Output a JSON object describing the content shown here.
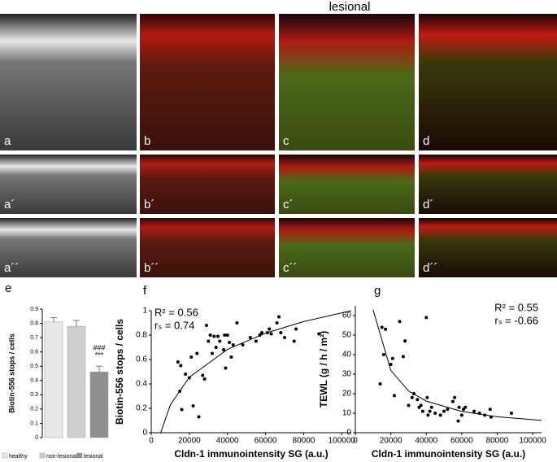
{
  "figure_title": "lesional",
  "micrographs": [
    "a",
    "b",
    "c",
    "d",
    "a´",
    "b´",
    "c´",
    "d´",
    "a´´",
    "b´´",
    "c´´",
    "d´´"
  ],
  "chart_data": [
    {
      "type": "bar",
      "panel": "e",
      "ylabel": "Biotin-556 stops / cells",
      "categories": [
        "healthy",
        "non-lesional",
        "lesional"
      ],
      "values": [
        0.81,
        0.78,
        0.46
      ],
      "errors": [
        0.03,
        0.04,
        0.04
      ],
      "colors": [
        "#e8e8e8",
        "#cfcfcf",
        "#8f8f8f"
      ],
      "annotations": [
        "###",
        "***"
      ],
      "ylim": [
        0,
        0.9
      ],
      "yticks": [
        0,
        0.1,
        0.2,
        0.3,
        0.4,
        0.5,
        0.6,
        0.7,
        0.8,
        0.9
      ],
      "legend": "bottom"
    },
    {
      "type": "scatter",
      "panel": "f",
      "xlabel": "Cldn-1 immunointensity SG (a.u.)",
      "ylabel": "Biotin-556 stops / cells",
      "annotations": [
        "R² = 0.56",
        "rₛ = 0.74"
      ],
      "annotation_corner": "top-left",
      "x": [
        14000,
        15000,
        16000,
        15500,
        18000,
        20000,
        21000,
        22000,
        25000,
        24000,
        27000,
        28000,
        29000,
        30000,
        31000,
        32000,
        33000,
        34000,
        35000,
        36000,
        38000,
        38500,
        39000,
        40000,
        41000,
        42000,
        43000,
        45000,
        48000,
        52000,
        55000,
        57000,
        58000,
        61000,
        62000,
        63000,
        66000,
        67000,
        68000,
        70000,
        75000,
        76000,
        88000
      ],
      "values": [
        0.58,
        0.34,
        0.19,
        0.55,
        0.48,
        0.45,
        0.62,
        0.22,
        0.13,
        0.65,
        0.47,
        0.44,
        0.88,
        0.75,
        0.8,
        0.65,
        0.79,
        0.7,
        0.79,
        0.75,
        0.68,
        0.8,
        0.53,
        0.8,
        0.74,
        0.62,
        0.72,
        0.9,
        0.72,
        0.78,
        0.75,
        0.8,
        0.82,
        0.82,
        0.85,
        0.81,
        0.9,
        0.95,
        0.82,
        0.78,
        0.75,
        0.85,
        0.81
      ],
      "fit": {
        "x": [
          5000,
          10000,
          20000,
          40000,
          60000,
          80000,
          105000
        ],
        "values": [
          0,
          0.228,
          0.455,
          0.683,
          0.816,
          0.911,
          1.0
        ]
      },
      "color": "#000000",
      "xlim": [
        0,
        105000
      ],
      "xticks": [
        0,
        20000,
        40000,
        60000,
        80000,
        100000
      ],
      "ylim": [
        0,
        1
      ],
      "yticks": [
        0,
        0.2,
        0.4,
        0.6,
        0.8,
        1
      ]
    },
    {
      "type": "scatter",
      "panel": "g",
      "xlabel": "Cldn-1 immunointensity SG (a.u.)",
      "ylabel": "TEWL (g / h / m²)",
      "annotations": [
        "R² = 0.55",
        "rₛ = -0.66"
      ],
      "annotation_corner": "top-right",
      "x": [
        14000,
        15000,
        16000,
        17000,
        20000,
        21000,
        22000,
        25000,
        27000,
        28000,
        30000,
        32000,
        33000,
        35000,
        36000,
        37000,
        38000,
        40000,
        40500,
        41000,
        42000,
        43000,
        45000,
        48000,
        50000,
        52000,
        55000,
        56000,
        58000,
        58500,
        60000,
        61000,
        62000,
        67000,
        70000,
        73000,
        76000,
        76500,
        88000
      ],
      "values": [
        25,
        54,
        40,
        53,
        35,
        38,
        19,
        57,
        39,
        47,
        14,
        18,
        20,
        17,
        13,
        14,
        11,
        59,
        18,
        9,
        11,
        13,
        10,
        9,
        11,
        12,
        16,
        18,
        6,
        13,
        9,
        12,
        13,
        11,
        10,
        9,
        12,
        8,
        10
      ],
      "fit": {
        "x": [
          10000,
          20000,
          30000,
          40000,
          60000,
          80000,
          105000
        ],
        "values": [
          63,
          31.9,
          21.4,
          16.2,
          10.9,
          8.2,
          6.3
        ]
      },
      "color": "#000000",
      "xlim": [
        0,
        105000
      ],
      "xticks": [
        0,
        20000,
        40000,
        60000,
        80000,
        100000
      ],
      "ylim": [
        0,
        65
      ],
      "yticks": [
        0,
        10,
        20,
        30,
        40,
        50,
        60
      ]
    }
  ]
}
